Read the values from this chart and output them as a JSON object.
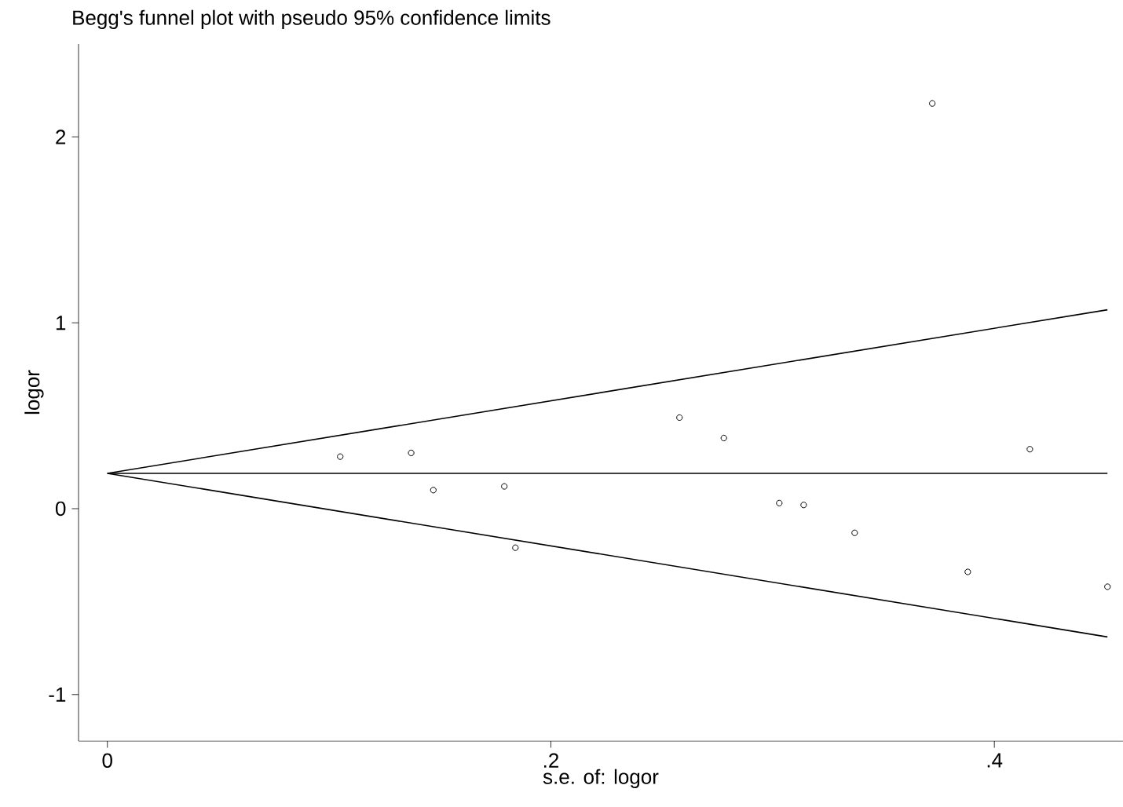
{
  "chart_data": {
    "type": "scatter",
    "title": "Begg's funnel plot with pseudo 95% confidence limits",
    "xlabel": "s.e. of: logor",
    "ylabel": "logor",
    "xlim": [
      -0.013,
      0.458
    ],
    "ylim": [
      -1.25,
      2.5
    ],
    "xticks": [
      0,
      {
        "value": 0.2,
        "label": ".2"
      },
      {
        "value": 0.4,
        "label": ".4"
      }
    ],
    "yticks": [
      -1,
      0,
      1,
      2
    ],
    "series": [
      {
        "color": "#000000",
        "marker": "circle",
        "x": [
          0.105,
          0.137,
          0.147,
          0.179,
          0.184,
          0.258,
          0.278,
          0.303,
          0.314,
          0.337,
          0.372,
          0.388,
          0.416,
          0.451
        ],
        "values": [
          0.28,
          0.3,
          0.1,
          0.12,
          -0.21,
          0.49,
          0.38,
          0.03,
          0.02,
          -0.13,
          2.18,
          -0.34,
          0.32,
          -0.42
        ]
      },
      {
        "type": "line",
        "color": "#000000",
        "x": [
          0,
          0.451
        ],
        "values": [
          0.19,
          1.07
        ]
      },
      {
        "type": "line",
        "color": "#000000",
        "x": [
          0,
          0.451
        ],
        "values": [
          0.19,
          0.19
        ]
      },
      {
        "type": "line",
        "color": "#000000",
        "x": [
          0,
          0.451
        ],
        "values": [
          0.19,
          -0.69
        ]
      }
    ]
  }
}
